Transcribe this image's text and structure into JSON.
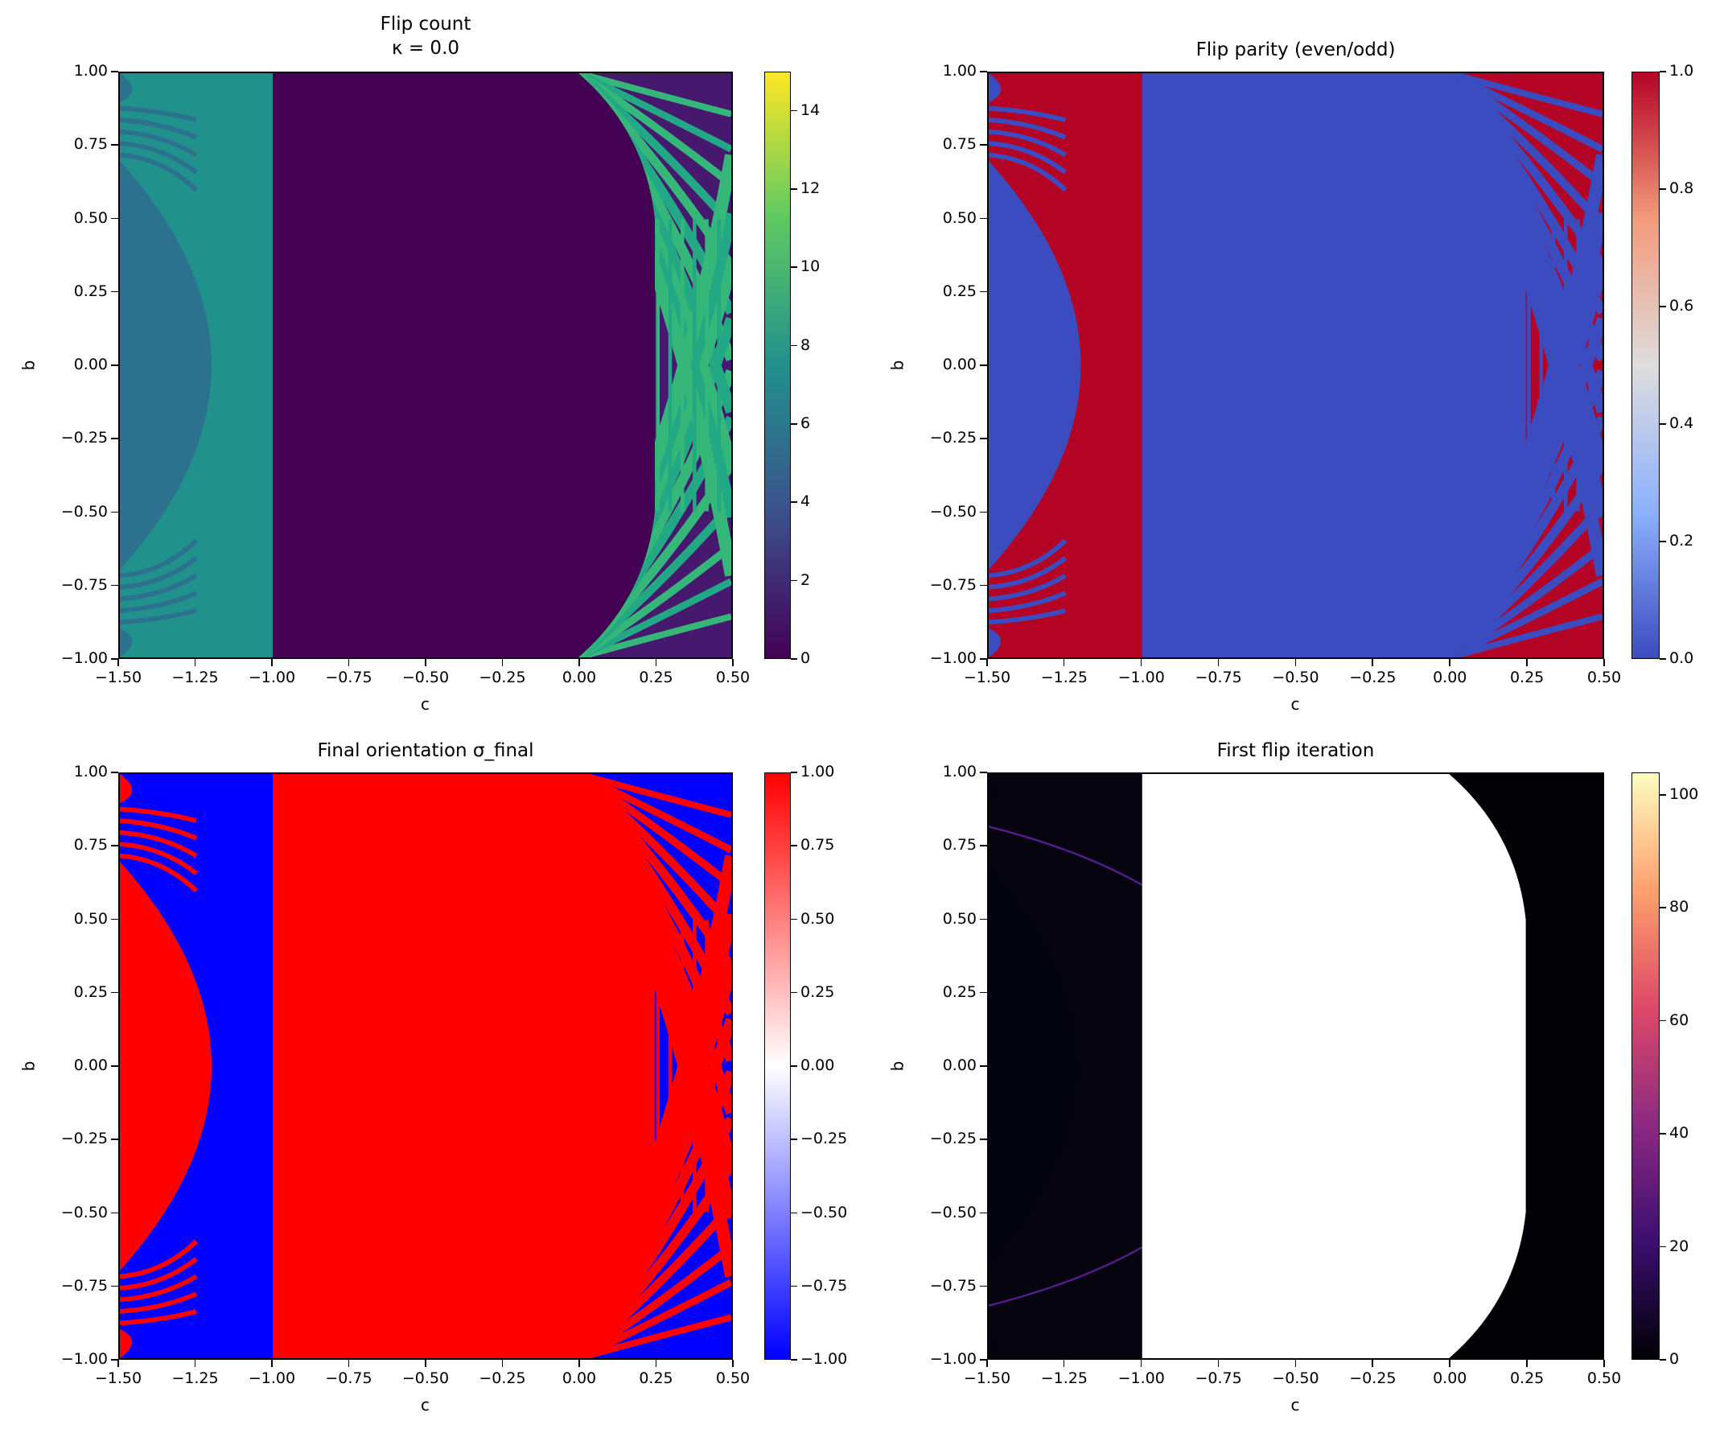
{
  "chart_data": [
    {
      "type": "heatmap",
      "title_lines": [
        "Flip count",
        "κ = 0.0"
      ],
      "xlabel": "c",
      "ylabel": "b",
      "xlim": [
        -1.5,
        0.5
      ],
      "ylim": [
        -1,
        1
      ],
      "xticks": [
        "−1.50",
        "−1.25",
        "−1.00",
        "−0.75",
        "−0.50",
        "−0.25",
        "0.00",
        "0.25",
        "0.50"
      ],
      "yticks": [
        "−1.00",
        "−0.75",
        "−0.50",
        "−0.25",
        "0.00",
        "0.25",
        "0.50",
        "0.75",
        "1.00"
      ],
      "colorbar": {
        "range": [
          0,
          15
        ],
        "ticks": [
          "0",
          "2",
          "4",
          "6",
          "8",
          "10",
          "12",
          "14"
        ],
        "tick_values": [
          0,
          2,
          4,
          6,
          8,
          10,
          12,
          14
        ],
        "colormap": "viridis"
      },
      "colors": {
        "band": "#21918c",
        "bulge": "#2c728e",
        "middle": "#440154",
        "right": "#46186e",
        "stripe": "#22a884",
        "stripe2": "#35b779"
      }
    },
    {
      "type": "heatmap",
      "title_lines": [
        "Flip parity (even/odd)"
      ],
      "xlabel": "c",
      "ylabel": "b",
      "xlim": [
        -1.5,
        0.5
      ],
      "ylim": [
        -1,
        1
      ],
      "xticks": [
        "−1.50",
        "−1.25",
        "−1.00",
        "−0.75",
        "−0.50",
        "−0.25",
        "0.00",
        "0.25",
        "0.50"
      ],
      "yticks": [
        "−1.00",
        "−0.75",
        "−0.50",
        "−0.25",
        "0.00",
        "0.25",
        "0.50",
        "0.75",
        "1.00"
      ],
      "colorbar": {
        "range": [
          0,
          1
        ],
        "ticks": [
          "0.0",
          "0.2",
          "0.4",
          "0.6",
          "0.8",
          "1.0"
        ],
        "tick_values": [
          0,
          0.2,
          0.4,
          0.6,
          0.8,
          1.0
        ],
        "colormap": "coolwarm"
      },
      "colors": {
        "band": "#b40426",
        "bulge": "#3b4cc0",
        "middle": "#3b4cc0",
        "right": "#b40426",
        "stripe": "#3b4cc0",
        "stripe2": "#3b4cc0"
      }
    },
    {
      "type": "heatmap",
      "title_lines": [
        "Final orientation σ_final"
      ],
      "xlabel": "c",
      "ylabel": "b",
      "xlim": [
        -1.5,
        0.5
      ],
      "ylim": [
        -1,
        1
      ],
      "xticks": [
        "−1.50",
        "−1.25",
        "−1.00",
        "−0.75",
        "−0.50",
        "−0.25",
        "0.00",
        "0.25",
        "0.50"
      ],
      "yticks": [
        "−1.00",
        "−0.75",
        "−0.50",
        "−0.25",
        "0.00",
        "0.25",
        "0.50",
        "0.75",
        "1.00"
      ],
      "colorbar": {
        "range": [
          -1,
          1
        ],
        "ticks": [
          "−1.00",
          "−0.75",
          "−0.50",
          "−0.25",
          "0.00",
          "0.25",
          "0.50",
          "0.75",
          "1.00"
        ],
        "tick_values": [
          -1,
          -0.75,
          -0.5,
          -0.25,
          0,
          0.25,
          0.5,
          0.75,
          1
        ],
        "colormap": "bwr"
      },
      "colors": {
        "band": "#0000ff",
        "bulge": "#ff0000",
        "middle": "#ff0000",
        "right": "#0000ff",
        "stripe": "#ff0000",
        "stripe2": "#ff0000"
      }
    },
    {
      "type": "heatmap",
      "title_lines": [
        "First flip iteration"
      ],
      "xlabel": "c",
      "ylabel": "b",
      "xlim": [
        -1.5,
        0.5
      ],
      "ylim": [
        -1,
        1
      ],
      "xticks": [
        "−1.50",
        "−1.25",
        "−1.00",
        "−0.75",
        "−0.50",
        "−0.25",
        "0.00",
        "0.25",
        "0.50"
      ],
      "yticks": [
        "−1.00",
        "−0.75",
        "−0.50",
        "−0.25",
        "0.00",
        "0.25",
        "0.50",
        "0.75",
        "1.00"
      ],
      "colorbar": {
        "range": [
          0,
          104
        ],
        "ticks": [
          "0",
          "20",
          "40",
          "60",
          "80",
          "100"
        ],
        "tick_values": [
          0,
          20,
          40,
          60,
          80,
          100
        ],
        "colormap": "magma"
      },
      "colors": {
        "band": "#06040f",
        "bulge": "#040310",
        "middle": "#ffffff",
        "right": "#020106",
        "stripe": "#0a0716",
        "stripe2": "#0a0716"
      }
    }
  ],
  "colormaps": {
    "viridis": [
      "#440154",
      "#3b528b",
      "#21918c",
      "#5ec962",
      "#fde725"
    ],
    "coolwarm": [
      "#3b4cc0",
      "#8db0fe",
      "#dddddd",
      "#f49a7b",
      "#b40426"
    ],
    "bwr": [
      "#0000ff",
      "#ffffff",
      "#ff0000"
    ],
    "magma": [
      "#000004",
      "#3b0f70",
      "#8c2981",
      "#de4968",
      "#fe9f6d",
      "#fcfdbf"
    ]
  }
}
